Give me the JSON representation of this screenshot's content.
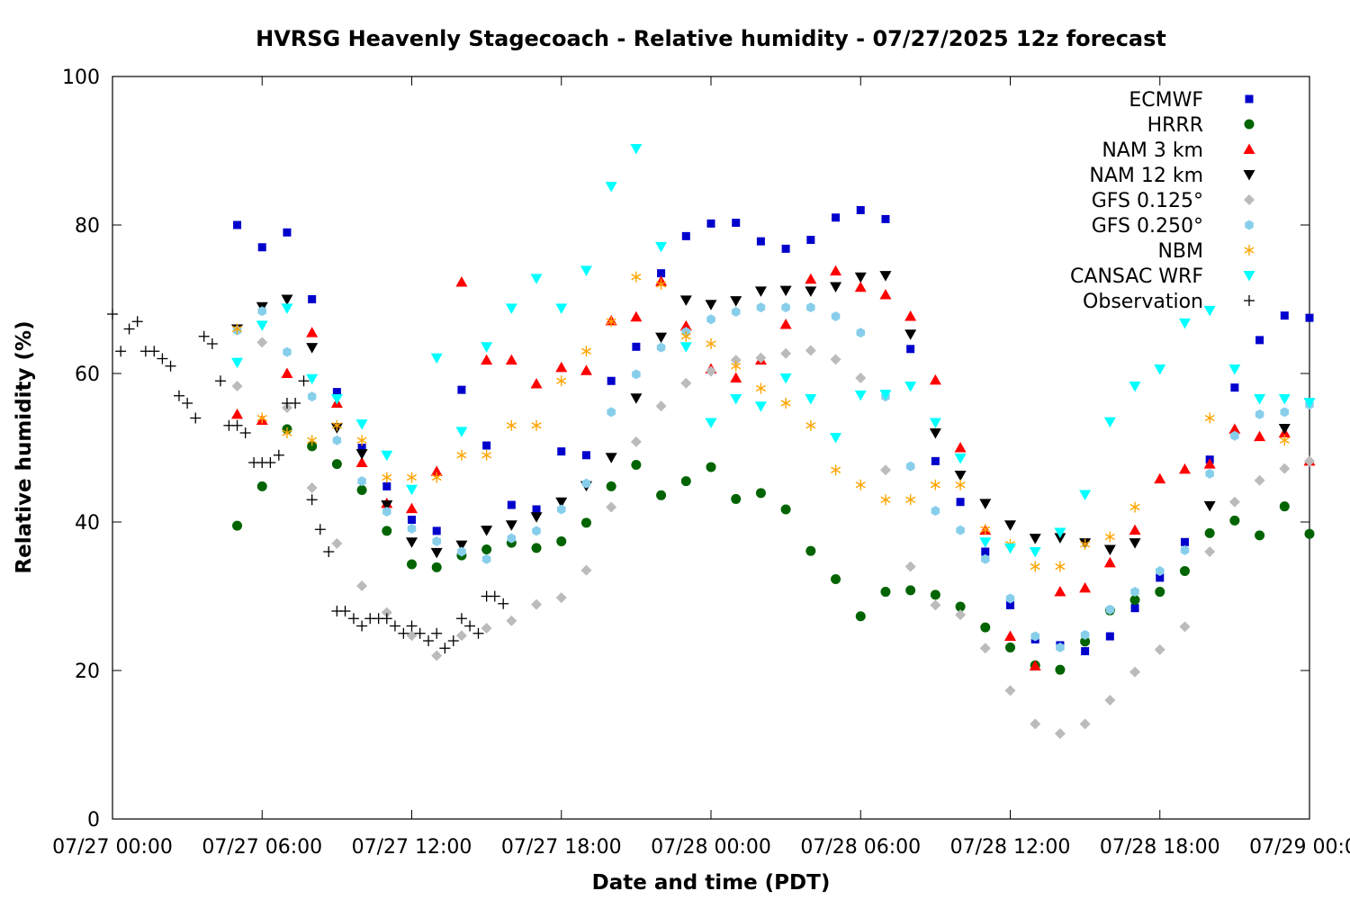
{
  "chart_data": {
    "type": "scatter",
    "title": "HVRSG Heavenly Stagecoach - Relative humidity - 07/27/2025 12z forecast",
    "xlabel": "Date and time (PDT)",
    "ylabel": "Relative humidity (%)",
    "x_range_hours": [
      0,
      48
    ],
    "ylim": [
      0,
      100
    ],
    "x_ticks": [
      {
        "hour": 0,
        "label": "07/27 00:00"
      },
      {
        "hour": 6,
        "label": "07/27 06:00"
      },
      {
        "hour": 12,
        "label": "07/27 12:00"
      },
      {
        "hour": 18,
        "label": "07/27 18:00"
      },
      {
        "hour": 24,
        "label": "07/28 00:00"
      },
      {
        "hour": 30,
        "label": "07/28 06:00"
      },
      {
        "hour": 36,
        "label": "07/28 12:00"
      },
      {
        "hour": 42,
        "label": "07/28 18:00"
      },
      {
        "hour": 48,
        "label": "07/29 00:00"
      }
    ],
    "y_ticks": [
      0,
      20,
      40,
      60,
      80,
      100
    ],
    "legend_position": "top-right",
    "grid": false,
    "series": [
      {
        "name": "ECMWF",
        "marker": "square",
        "color": "#0000cc",
        "x": [
          5,
          6,
          7,
          8,
          9,
          10,
          11,
          12,
          13,
          14,
          15,
          16,
          17,
          18,
          19,
          20,
          21,
          22,
          23,
          24,
          25,
          26,
          27,
          28,
          29,
          30,
          31,
          32,
          33,
          34,
          35,
          36,
          37,
          38,
          39,
          40,
          41,
          42,
          43,
          44,
          45,
          46,
          47,
          48
        ],
        "y": [
          80,
          77,
          79,
          70,
          57.5,
          50,
          44.8,
          40.3,
          38.8,
          57.8,
          50.3,
          42.3,
          41.7,
          49.5,
          49,
          59,
          63.6,
          73.5,
          78.5,
          80.2,
          80.3,
          77.8,
          76.8,
          78,
          81,
          82,
          80.8,
          63.3,
          48.2,
          42.7,
          36,
          28.8,
          24.2,
          23.4,
          22.6,
          24.6,
          28.4,
          32.5,
          37.3,
          48.4,
          58.1,
          64.5,
          67.8,
          67.5
        ]
      },
      {
        "name": "HRRR",
        "marker": "circle",
        "color": "#006400",
        "x": [
          5,
          6,
          7,
          8,
          9,
          10,
          11,
          12,
          13,
          14,
          15,
          16,
          17,
          18,
          19,
          20,
          21,
          22,
          23,
          24,
          25,
          26,
          27,
          28,
          29,
          30,
          31,
          32,
          33,
          34,
          35,
          36,
          37,
          38,
          39,
          40,
          41,
          42,
          43,
          44,
          45,
          46,
          47,
          48
        ],
        "y": [
          39.5,
          44.8,
          52.5,
          50.2,
          47.8,
          44.3,
          38.8,
          34.3,
          33.9,
          35.5,
          36.3,
          37.2,
          36.5,
          37.4,
          39.9,
          44.8,
          47.7,
          43.6,
          45.5,
          47.4,
          43.1,
          43.9,
          41.7,
          36.1,
          32.3,
          27.3,
          30.6,
          30.8,
          30.2,
          28.6,
          25.8,
          23.1,
          20.7,
          20.1,
          23.9,
          28.1,
          29.5,
          30.6,
          33.4,
          38.5,
          40.2,
          38.2,
          42.1,
          38.4
        ]
      },
      {
        "name": "NAM 3 km",
        "marker": "triangle-up",
        "color": "#ff0000",
        "x": [
          5,
          6,
          7,
          8,
          9,
          10,
          11,
          12,
          13,
          14,
          15,
          16,
          17,
          18,
          19,
          20,
          21,
          22,
          23,
          24,
          25,
          26,
          27,
          28,
          29,
          30,
          31,
          32,
          33,
          34,
          35,
          36,
          37,
          38,
          39,
          40,
          41,
          42,
          43,
          44,
          45,
          46,
          47,
          48
        ],
        "y": [
          54.5,
          53.7,
          60,
          65.5,
          56,
          48,
          42.5,
          41.8,
          46.8,
          72.3,
          61.8,
          61.8,
          58.6,
          60.8,
          60.4,
          67.1,
          67.6,
          72.4,
          66.4,
          60.6,
          59.4,
          61.8,
          66.6,
          72.7,
          73.8,
          71.6,
          70.6,
          67.7,
          59.1,
          50,
          38.9,
          24.6,
          20.6,
          30.6,
          31.1,
          34.5,
          38.9,
          45.8,
          47.1,
          47.8,
          52.5,
          51.5,
          52,
          48.2
        ]
      },
      {
        "name": "NAM 12 km",
        "marker": "triangle-down",
        "color": "#000000",
        "x": [
          5,
          6,
          7,
          8,
          9,
          10,
          11,
          12,
          13,
          14,
          15,
          16,
          17,
          18,
          19,
          20,
          21,
          22,
          23,
          24,
          25,
          26,
          27,
          28,
          29,
          30,
          31,
          32,
          33,
          34,
          35,
          36,
          37,
          38,
          39,
          40,
          41,
          42,
          43,
          44,
          45,
          46,
          47,
          48
        ],
        "y": [
          66,
          69,
          70,
          63.5,
          52.7,
          49.2,
          42.3,
          37.3,
          35.9,
          36.9,
          38.9,
          39.6,
          40.7,
          42.7,
          44.9,
          48.7,
          56.7,
          64.9,
          69.9,
          69.3,
          69.8,
          71.1,
          71.2,
          71.1,
          71.7,
          73,
          73.2,
          65.3,
          52,
          46.3,
          42.5,
          39.6,
          37.8,
          37.9,
          37.2,
          36.3,
          37.2,
          null,
          null,
          42.2,
          null,
          null,
          52.6,
          null
        ]
      },
      {
        "name": "GFS 0.125°",
        "marker": "diamond",
        "color": "#bbbbbb",
        "x": [
          5,
          6,
          7,
          8,
          9,
          10,
          11,
          12,
          13,
          14,
          15,
          16,
          17,
          18,
          19,
          20,
          21,
          22,
          23,
          24,
          25,
          26,
          27,
          28,
          29,
          30,
          31,
          32,
          33,
          34,
          35,
          36,
          37,
          38,
          39,
          40,
          41,
          42,
          43,
          44,
          45,
          46,
          47,
          48
        ],
        "y": [
          58.3,
          64.2,
          55.4,
          44.6,
          37.1,
          31.4,
          27.8,
          24.7,
          22,
          24.7,
          25.7,
          26.7,
          28.9,
          29.8,
          33.5,
          42,
          50.8,
          55.6,
          58.7,
          60.3,
          61.8,
          62.1,
          62.7,
          63.1,
          61.9,
          59.4,
          47,
          34,
          28.8,
          27.5,
          23,
          17.3,
          12.8,
          11.5,
          12.8,
          16,
          19.8,
          22.8,
          25.9,
          36,
          42.7,
          45.6,
          47.2,
          48.2
        ]
      },
      {
        "name": "GFS 0.250°",
        "marker": "hexagon",
        "color": "#87ceeb",
        "x": [
          5,
          6,
          7,
          8,
          9,
          10,
          11,
          12,
          13,
          14,
          15,
          16,
          17,
          18,
          19,
          20,
          21,
          22,
          23,
          24,
          25,
          26,
          27,
          28,
          29,
          30,
          31,
          32,
          33,
          34,
          35,
          36,
          37,
          38,
          39,
          40,
          41,
          42,
          43,
          44,
          45,
          46,
          47,
          48
        ],
        "y": [
          65.8,
          68.4,
          62.9,
          56.9,
          51,
          45.5,
          41.4,
          39.1,
          37.4,
          36,
          35,
          37.8,
          38.8,
          41.7,
          45.2,
          54.8,
          59.9,
          63.5,
          65.6,
          67.3,
          68.3,
          68.9,
          68.9,
          68.9,
          67.7,
          65.5,
          56.9,
          47.5,
          41.5,
          38.9,
          35,
          29.7,
          24.6,
          23.1,
          24.8,
          28.2,
          30.6,
          33.4,
          36.2,
          46.5,
          51.6,
          54.5,
          54.8,
          55.8
        ]
      },
      {
        "name": "NBM",
        "marker": "asterisk",
        "color": "#ffa500",
        "x": [
          5,
          6,
          7,
          8,
          9,
          10,
          11,
          12,
          13,
          14,
          15,
          16,
          17,
          18,
          19,
          20,
          21,
          22,
          23,
          24,
          25,
          26,
          27,
          28,
          29,
          30,
          31,
          32,
          33,
          34,
          35,
          36,
          37,
          38,
          39,
          40,
          41,
          42,
          43,
          44,
          45,
          46,
          47,
          48
        ],
        "y": [
          66,
          54,
          52,
          51,
          53,
          51,
          46,
          46,
          46,
          49,
          49,
          53,
          53,
          59,
          63,
          67,
          73,
          72,
          65,
          64,
          61,
          58,
          56,
          53,
          47,
          45,
          43,
          43,
          45,
          45,
          39,
          37,
          34,
          34,
          37,
          38,
          42,
          null,
          null,
          54,
          null,
          null,
          51,
          null
        ]
      },
      {
        "name": "CANSAC WRF",
        "marker": "triangle-down",
        "color": "#00ffff",
        "x": [
          5,
          6,
          7,
          8,
          9,
          10,
          11,
          12,
          13,
          14,
          15,
          16,
          17,
          18,
          19,
          20,
          21,
          22,
          23,
          24,
          25,
          26,
          27,
          28,
          29,
          30,
          31,
          32,
          33,
          34,
          35,
          36,
          37,
          38,
          39,
          40,
          41,
          42,
          43,
          44,
          45,
          46,
          47,
          48
        ],
        "y": [
          61.5,
          66.5,
          68.8,
          59.3,
          56.6,
          53.2,
          49,
          44.4,
          62.1,
          52.2,
          63.6,
          68.8,
          72.8,
          68.8,
          73.9,
          85.2,
          90.3,
          77.1,
          63.6,
          53.4,
          56.6,
          55.6,
          59.4,
          56.6,
          51.4,
          57.1,
          57.2,
          58.3,
          53.4,
          48.6,
          37.3,
          36.5,
          36,
          38.6,
          43.7,
          53.5,
          58.3,
          60.6,
          66.8,
          68.5,
          60.6,
          56.6,
          56.6,
          56.1
        ]
      },
      {
        "name": "Observation",
        "marker": "plus",
        "color": "#000000",
        "x": [
          0,
          0.33,
          0.67,
          1,
          1.33,
          1.67,
          2,
          2.33,
          2.67,
          3,
          3.33,
          3.67,
          4,
          4.33,
          4.67,
          5,
          5.33,
          5.67,
          6,
          6.33,
          6.67,
          7,
          7.33,
          7.67,
          8,
          8.33,
          8.67,
          9,
          9.33,
          9.67,
          10,
          10.33,
          10.67,
          11,
          11.33,
          11.67,
          12,
          12.33,
          12.67,
          13,
          13.33,
          13.67,
          14,
          14.33,
          14.67,
          15,
          15.33,
          15.67
        ],
        "y": [
          68,
          63,
          66,
          67,
          63,
          63,
          62,
          61,
          57,
          56,
          54,
          65,
          64,
          59,
          53,
          53,
          52,
          48,
          48,
          48,
          49,
          56,
          56,
          59,
          43,
          39,
          36,
          28,
          28,
          27,
          26,
          27,
          27,
          27,
          26,
          25,
          26,
          25,
          24,
          25,
          23,
          24,
          27,
          26,
          25,
          30,
          30,
          29
        ]
      }
    ]
  }
}
